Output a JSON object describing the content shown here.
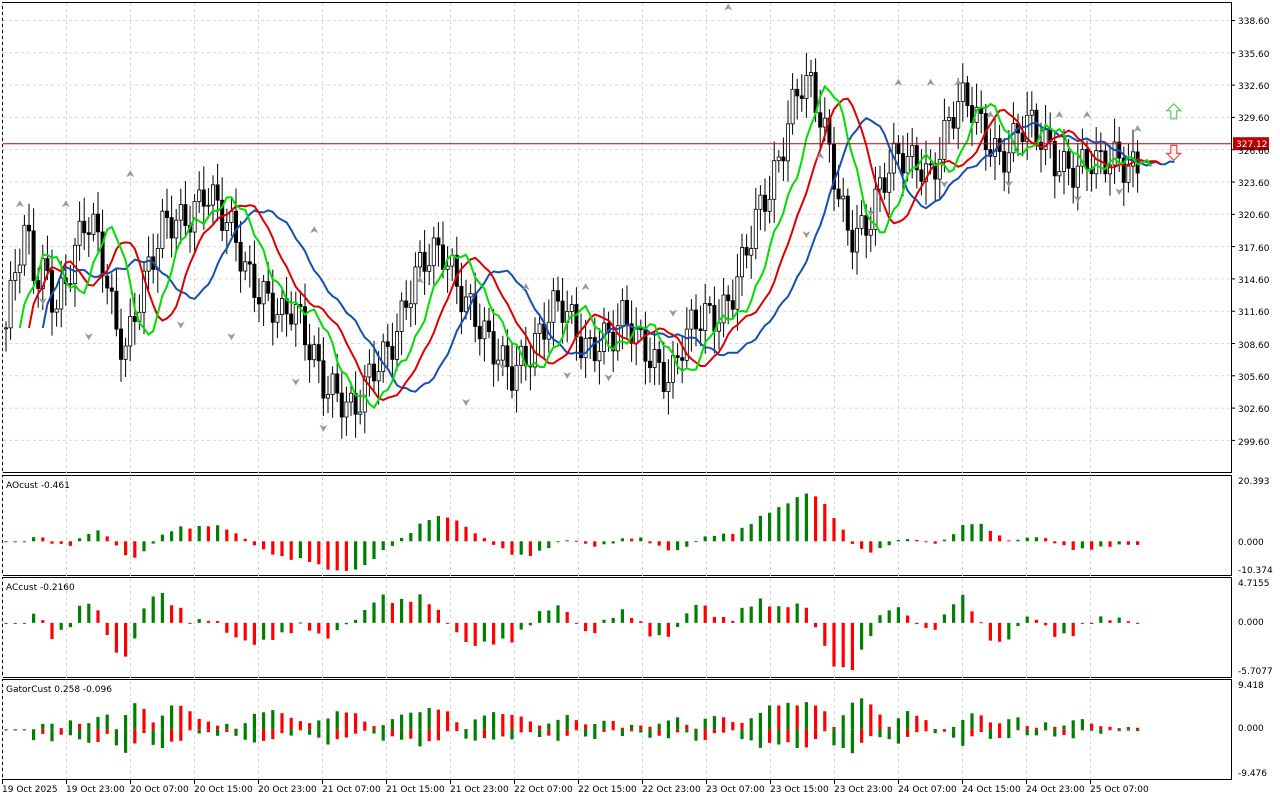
{
  "main": {
    "price_ticks": [
      "338.60",
      "335.60",
      "332.60",
      "329.60",
      "326.60",
      "323.60",
      "320.60",
      "317.60",
      "314.60",
      "311.60",
      "308.60",
      "305.60",
      "302.60",
      "299.60"
    ],
    "current_price": "327.12",
    "current_price_value": 327.12,
    "price_range": [
      296.6,
      340.2
    ]
  },
  "ao_panel": {
    "label": "AOcust -0.461",
    "ticks": [
      "20.393",
      "0.000",
      "-10.374"
    ],
    "range": [
      -10.374,
      20.393
    ]
  },
  "ac_panel": {
    "label": "ACcust -0.2160",
    "ticks": [
      "4.7155",
      "0.000",
      "-5.7077"
    ],
    "range": [
      -5.7077,
      4.7155
    ]
  },
  "gator_panel": {
    "label": "GatorCust 0.258 -0.096",
    "ticks": [
      "9.418",
      "0.000",
      "-9.476"
    ],
    "range": [
      -9.476,
      9.418
    ]
  },
  "time_axis": {
    "labels": [
      "19 Oct 2025",
      "19 Oct 23:00",
      "20 Oct 07:00",
      "20 Oct 15:00",
      "20 Oct 23:00",
      "21 Oct 07:00",
      "21 Oct 15:00",
      "21 Oct 23:00",
      "22 Oct 07:00",
      "22 Oct 15:00",
      "22 Oct 23:00",
      "23 Oct 07:00",
      "23 Oct 15:00",
      "23 Oct 23:00",
      "24 Oct 07:00",
      "24 Oct 15:00",
      "24 Oct 23:00",
      "25 Oct 07:00"
    ]
  },
  "colors": {
    "bull": "#ffffff",
    "bear": "#000000",
    "lips": "#00dd00",
    "teeth": "#dd0000",
    "jaw": "#1450b4",
    "ind_up": "#008000",
    "ind_down": "#ff0000",
    "price_line": "#c00000",
    "grid": "#d8d8d8",
    "arrow_up": "#55cc55",
    "arrow_down": "#ee4444",
    "fractal": "#999999"
  },
  "chart_data": {
    "type": "candlestick",
    "closes": [
      310,
      315,
      318,
      314,
      316,
      313,
      315,
      317,
      319,
      318,
      315,
      311,
      309,
      312,
      314,
      316,
      319,
      320,
      321,
      322,
      323,
      321,
      319,
      318,
      316,
      315,
      314,
      312,
      310,
      311,
      309,
      308,
      306,
      305,
      303,
      301,
      303,
      306,
      308,
      310,
      312,
      314,
      315,
      316,
      317,
      316,
      314,
      312,
      309,
      307,
      306,
      306,
      308,
      309,
      310,
      311,
      311,
      310,
      309,
      309,
      310,
      309,
      310,
      309,
      308,
      308,
      307,
      306,
      308,
      309,
      310,
      311,
      312,
      314,
      316,
      318,
      320,
      322,
      326,
      331,
      334,
      333,
      329,
      325,
      321,
      319,
      320,
      321,
      323,
      324,
      325,
      325,
      326,
      325,
      327,
      329,
      330,
      330,
      329,
      328,
      327,
      327,
      328,
      328,
      327,
      327,
      326,
      326,
      325,
      325,
      324,
      325,
      326,
      326,
      326
    ],
    "fractals_up": [
      [
        3,
        321.3
      ],
      [
        13,
        321.3
      ],
      [
        27,
        324.1
      ],
      [
        67,
        318.9
      ],
      [
        90,
        314.2
      ],
      [
        113,
        313.6
      ],
      [
        126,
        313.6
      ],
      [
        157,
        339.6
      ],
      [
        177,
        325.8
      ],
      [
        194,
        332.6
      ],
      [
        201,
        332.6
      ],
      [
        207,
        332.6
      ],
      [
        214,
        329.6
      ],
      [
        229,
        329.6
      ],
      [
        235,
        329.6
      ],
      [
        246,
        328.3
      ]
    ],
    "fractals_down": [
      [
        8,
        312.7
      ],
      [
        18,
        309.4
      ],
      [
        38,
        310.5
      ],
      [
        49,
        309.4
      ],
      [
        63,
        305.2
      ],
      [
        69,
        300.9
      ],
      [
        100,
        303.3
      ],
      [
        108,
        306.6
      ],
      [
        122,
        305.8
      ],
      [
        131,
        305.6
      ],
      [
        145,
        311.6
      ],
      [
        174,
        318.9
      ],
      [
        188,
        320.9
      ],
      [
        204,
        323.6
      ],
      [
        218,
        323.6
      ],
      [
        233,
        322.2
      ],
      [
        242,
        322.9
      ]
    ],
    "buy_arrow": [
      253,
      329.9
    ],
    "sell_arrow": [
      253,
      326.5
    ],
    "ao_values": [],
    "ac_values": [],
    "gator_values": []
  }
}
